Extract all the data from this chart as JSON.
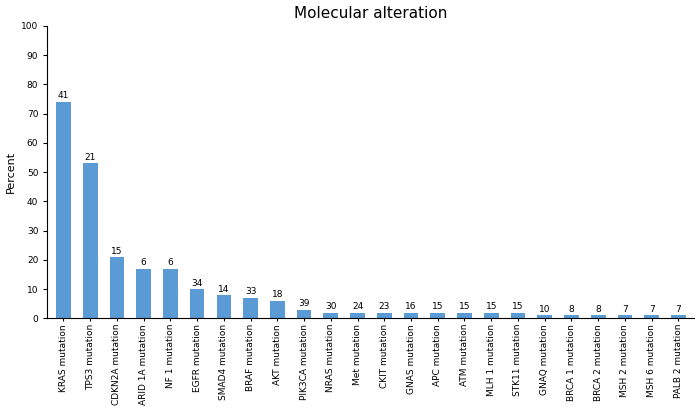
{
  "categories": [
    "KRAS mutation",
    "TPS3 mutation",
    "CDKN2A mutation",
    "ARID 1A mutation",
    "NF 1 mutation",
    "EGFR mutation",
    "SMAD4 mutation",
    "BRAF mutation",
    "AKT mutation",
    "PIK3CA mutation",
    "NRAS mutation",
    "Met mutation",
    "CKIT mutation",
    "GNAS mutation",
    "APC mutation",
    "ATM mutation",
    "MLH 1 mutation",
    "STK11 mutation",
    "GNAQ mutation",
    "BRCA 1 mutation",
    "BRCA 2 mutation",
    "MSH 2 mutation",
    "MSH 6 mutation",
    "PALB 2 mutation"
  ],
  "values": [
    74,
    53,
    21,
    17,
    17,
    10,
    8,
    7,
    6,
    3,
    2,
    2,
    2,
    2,
    2,
    2,
    2,
    2,
    1,
    1,
    1,
    1,
    1,
    1
  ],
  "labels": [
    41,
    21,
    15,
    6,
    6,
    34,
    14,
    33,
    18,
    39,
    30,
    24,
    23,
    16,
    15,
    15,
    15,
    15,
    10,
    8,
    8,
    7,
    7,
    7
  ],
  "bar_color": "#5b9bd5",
  "title": "Molecular alteration",
  "ylabel": "Percent",
  "ylim": [
    0,
    100
  ],
  "yticks": [
    0,
    10,
    20,
    30,
    40,
    50,
    60,
    70,
    80,
    90,
    100
  ],
  "title_fontsize": 11,
  "label_fontsize": 6.5,
  "tick_fontsize": 6.5,
  "ylabel_fontsize": 8,
  "bar_width": 0.55
}
